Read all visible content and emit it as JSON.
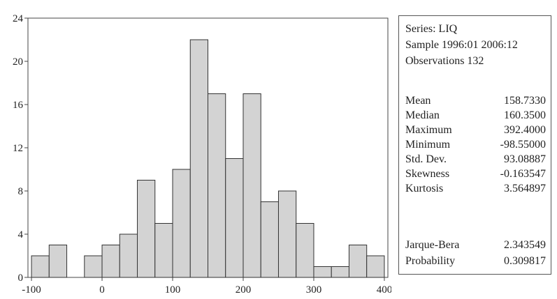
{
  "chart_data": {
    "type": "bar",
    "subtype": "histogram",
    "bins": [
      {
        "from": -100,
        "to": -75,
        "count": 2
      },
      {
        "from": -75,
        "to": -50,
        "count": 3
      },
      {
        "from": -50,
        "to": -25,
        "count": 0
      },
      {
        "from": -25,
        "to": 0,
        "count": 2
      },
      {
        "from": 0,
        "to": 25,
        "count": 3
      },
      {
        "from": 25,
        "to": 50,
        "count": 4
      },
      {
        "from": 50,
        "to": 75,
        "count": 9
      },
      {
        "from": 75,
        "to": 100,
        "count": 5
      },
      {
        "from": 100,
        "to": 125,
        "count": 10
      },
      {
        "from": 125,
        "to": 150,
        "count": 22
      },
      {
        "from": 150,
        "to": 175,
        "count": 17
      },
      {
        "from": 175,
        "to": 200,
        "count": 11
      },
      {
        "from": 200,
        "to": 225,
        "count": 17
      },
      {
        "from": 225,
        "to": 250,
        "count": 7
      },
      {
        "from": 250,
        "to": 275,
        "count": 8
      },
      {
        "from": 275,
        "to": 300,
        "count": 5
      },
      {
        "from": 300,
        "to": 325,
        "count": 1
      },
      {
        "from": 325,
        "to": 350,
        "count": 1
      },
      {
        "from": 350,
        "to": 375,
        "count": 3
      },
      {
        "from": 375,
        "to": 400,
        "count": 2
      }
    ],
    "xlim": [
      -105,
      405
    ],
    "ylim": [
      0,
      24
    ],
    "xticks": [
      -100,
      0,
      100,
      200,
      300,
      400
    ],
    "yticks": [
      0,
      4,
      8,
      12,
      16,
      20,
      24
    ],
    "grid": false,
    "bar_color": "#d3d3d3",
    "edge_color": "#333333"
  },
  "stats": {
    "series": "Series: LIQ",
    "sample": "Sample 1996:01 2006:12",
    "observations": "Observations 132",
    "rows": [
      {
        "label": "Mean",
        "value": "158.7330"
      },
      {
        "label": "Median",
        "value": "160.3500"
      },
      {
        "label": "Maximum",
        "value": "392.4000"
      },
      {
        "label": "Minimum",
        "value": "-98.55000"
      },
      {
        "label": "Std. Dev.",
        "value": "93.08887"
      },
      {
        "label": "Skewness",
        "value": "-0.163547"
      },
      {
        "label": "Kurtosis",
        "value": "3.564897"
      }
    ],
    "tests": [
      {
        "label": "Jarque-Bera",
        "value": "2.343549"
      },
      {
        "label": "Probability",
        "value": "0.309817"
      }
    ]
  }
}
